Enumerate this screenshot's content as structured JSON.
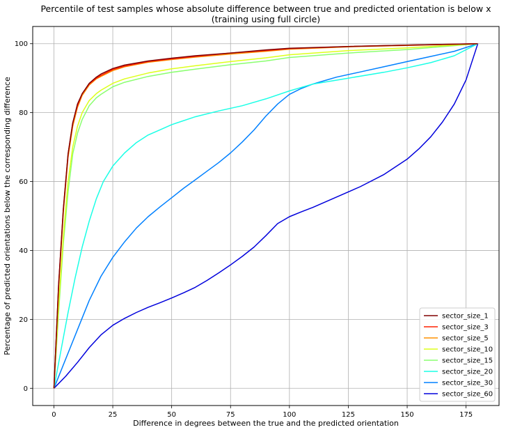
{
  "chart_data": {
    "type": "line",
    "title": "Percentile of test samples whose absolute difference between true and predicted orientation is below x",
    "subtitle": "(training using full circle)",
    "xlabel": "Difference in degrees between the true and the predicted orientation",
    "ylabel": "Percentage of predicted orientations below the corresponding difference",
    "xlim": [
      -9,
      189
    ],
    "ylim": [
      -5,
      105
    ],
    "xticks": [
      0,
      25,
      50,
      75,
      100,
      125,
      150,
      175
    ],
    "yticks": [
      0,
      20,
      40,
      60,
      80,
      100
    ],
    "grid": true,
    "legend_position": "lower-right",
    "series": [
      {
        "name": "sector_size_1",
        "color": "#800000",
        "x": [
          0,
          2,
          4,
          6,
          8,
          10,
          12,
          15,
          18,
          20,
          25,
          30,
          40,
          50,
          60,
          75,
          90,
          100,
          125,
          150,
          180
        ],
        "y": [
          0,
          30,
          52,
          68,
          77,
          82.5,
          85.5,
          88.5,
          90.3,
          91.2,
          92.8,
          93.8,
          95.0,
          95.8,
          96.5,
          97.3,
          98.2,
          98.7,
          99.2,
          99.6,
          100
        ]
      },
      {
        "name": "sector_size_3",
        "color": "#ff2000",
        "x": [
          0,
          2,
          4,
          6,
          8,
          10,
          12,
          15,
          18,
          20,
          25,
          30,
          40,
          50,
          60,
          75,
          90,
          100,
          125,
          150,
          180
        ],
        "y": [
          0,
          30,
          52,
          68,
          77,
          82,
          85.5,
          88.3,
          90,
          90.8,
          92.5,
          93.5,
          94.8,
          95.6,
          96.3,
          97.3,
          98.0,
          98.6,
          99.2,
          99.6,
          100
        ]
      },
      {
        "name": "sector_size_5",
        "color": "#ff9000",
        "x": [
          0,
          2,
          4,
          6,
          8,
          10,
          12,
          15,
          18,
          20,
          25,
          30,
          40,
          50,
          60,
          75,
          90,
          100,
          125,
          150,
          180
        ],
        "y": [
          0,
          29,
          51,
          67,
          76,
          81.5,
          85,
          88,
          89.8,
          90.5,
          92.2,
          93.3,
          94.6,
          95.4,
          96.1,
          97.0,
          97.8,
          98.4,
          99.1,
          99.5,
          100
        ]
      },
      {
        "name": "sector_size_10",
        "color": "#ddff1a",
        "x": [
          0,
          2,
          4,
          6,
          8,
          10,
          12,
          15,
          18,
          20,
          25,
          30,
          40,
          50,
          60,
          75,
          90,
          100,
          125,
          150,
          180
        ],
        "y": [
          0,
          24,
          44,
          60,
          70,
          76,
          80,
          83.5,
          85.5,
          86.5,
          88.5,
          89.8,
          91.5,
          92.7,
          93.6,
          94.8,
          95.9,
          96.8,
          98.0,
          98.8,
          100
        ]
      },
      {
        "name": "sector_size_15",
        "color": "#8aff70",
        "x": [
          0,
          2,
          4,
          6,
          8,
          10,
          12,
          15,
          18,
          20,
          25,
          30,
          40,
          50,
          60,
          75,
          90,
          100,
          125,
          150,
          180
        ],
        "y": [
          0,
          22,
          42,
          57,
          68,
          74,
          78,
          82,
          84.3,
          85.3,
          87.5,
          88.8,
          90.5,
          91.7,
          92.6,
          93.9,
          95.0,
          96.0,
          97.3,
          98.3,
          100
        ]
      },
      {
        "name": "sector_size_20",
        "color": "#1affe6",
        "x": [
          0,
          3,
          6,
          9,
          12,
          15,
          18,
          21,
          25,
          30,
          35,
          40,
          45,
          50,
          60,
          70,
          80,
          90,
          100,
          110,
          125,
          140,
          150,
          160,
          170,
          180
        ],
        "y": [
          0,
          11,
          22,
          32,
          41,
          48.5,
          55,
          60,
          64.5,
          68.3,
          71.3,
          73.5,
          75,
          76.5,
          78.8,
          80.5,
          82,
          84,
          86.3,
          88.3,
          90,
          91.7,
          93,
          94.5,
          96.5,
          100
        ]
      },
      {
        "name": "sector_size_30",
        "color": "#0080ff",
        "x": [
          0,
          5,
          10,
          15,
          20,
          25,
          30,
          35,
          40,
          45,
          50,
          55,
          60,
          65,
          70,
          75,
          80,
          85,
          90,
          95,
          100,
          105,
          110,
          115,
          120,
          130,
          140,
          150,
          160,
          170,
          180
        ],
        "y": [
          0,
          8.5,
          17,
          25.5,
          32.5,
          38,
          42.5,
          46.5,
          49.8,
          52.6,
          55.3,
          58,
          60.5,
          63,
          65.5,
          68.3,
          71.5,
          75,
          79,
          82.5,
          85.3,
          87,
          88.3,
          89.3,
          90.3,
          91.8,
          93.3,
          94.8,
          96.3,
          97.8,
          100
        ]
      },
      {
        "name": "sector_size_60",
        "color": "#0000dc",
        "x": [
          0,
          5,
          10,
          15,
          20,
          25,
          30,
          35,
          40,
          45,
          50,
          55,
          60,
          65,
          70,
          75,
          80,
          85,
          90,
          95,
          100,
          105,
          110,
          120,
          130,
          140,
          150,
          155,
          160,
          165,
          170,
          175,
          180
        ],
        "y": [
          0,
          3.5,
          7.5,
          11.8,
          15.5,
          18.3,
          20.3,
          22,
          23.5,
          24.8,
          26.2,
          27.7,
          29.3,
          31.3,
          33.5,
          35.8,
          38.3,
          41,
          44.3,
          47.8,
          49.8,
          51.2,
          52.5,
          55.5,
          58.5,
          62,
          66.5,
          69.5,
          73,
          77.3,
          82.5,
          89.5,
          100
        ]
      }
    ]
  }
}
